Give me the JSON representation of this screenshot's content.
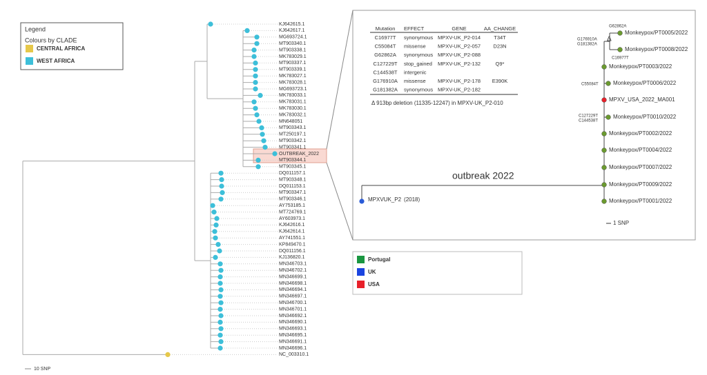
{
  "legend": {
    "title": "Legend",
    "subtitle": "Colours by CLADE",
    "items": [
      {
        "label": "CENTRAL AFRICA",
        "color": "#e6c84a"
      },
      {
        "label": "WEST AFRICA",
        "color": "#3dbfd9"
      }
    ]
  },
  "tree": {
    "leaves": [
      "KJ642615.1",
      "KJ642617.1",
      "MG693724.1",
      "MT903340.1",
      "MT903338.1",
      "MK783029.1",
      "MT903337.1",
      "MT903339.1",
      "MK783027.1",
      "MK783028.1",
      "MG693723.1",
      "MK783033.1",
      "MK783031.1",
      "MK783030.1",
      "MK783032.1",
      "MN648051",
      "MT903343.1",
      "MT250197.1",
      "MT903342.1",
      "MT903341.1",
      "OUTBREAK_2022",
      "MT903344.1",
      "MT903345.1",
      "DQ011157.1",
      "MT903348.1",
      "DQ011153.1",
      "MT903347.1",
      "MT903346.1",
      "AY753185.1",
      "MT724769.1",
      "AY603973.1",
      "KJ642616.1",
      "KJ642614.1",
      "AY741551.1",
      "KP849470.1",
      "DQ011156.1",
      "KJ136820.1",
      "MN346703.1",
      "MN346702.1",
      "MN346699.1",
      "MN346698.1",
      "MN346694.1",
      "MN346697.1",
      "MN346700.1",
      "MN346701.1",
      "MN346692.1",
      "MN346690.1",
      "MN346693.1",
      "MN346695.1",
      "MN346691.1",
      "MN346696.1",
      "NC_003310.1"
    ],
    "scale_label": "10 SNP"
  },
  "inset": {
    "table": {
      "header": [
        "Mutation",
        "EFFECT",
        "GENE",
        "AA_CHANGE"
      ],
      "rows": [
        [
          "C16977T",
          "synonymous",
          "MPXV-UK_P2-014",
          "T34T"
        ],
        [
          "C55084T",
          "missense",
          "MPXV-UK_P2-057",
          "D23N"
        ],
        [
          "G62862A",
          "synonymous",
          "MPXV-UK_P2-088"
        ],
        [
          "C127229T",
          "stop_gained",
          "MPXV-UK_P2-132",
          "Q9*"
        ],
        [
          "C144538T",
          "intergenic"
        ],
        [
          "G176910A",
          "missense",
          "MPXV-UK_P2-178",
          "E390K"
        ],
        [
          "G181382A",
          "synonymous",
          "MPXV-UK_P2-182"
        ]
      ]
    },
    "deletion_note": "Δ 913bp deletion (11335-12247) in MPXV-UK_P2-010",
    "title": "outbreak 2022",
    "root": {
      "label": "MPXVUK_P2",
      "year": "(2018)"
    },
    "leaves": [
      "Monkeypox/PT0005/2022",
      "Monkeypox/PT0008/2022",
      "Monkeypox/PT0003/2022",
      "Monkeypox/PT0006/2022",
      "MPXV_USA_2022_MA001",
      "Monkeypox/PT0010/2022",
      "Monkeypox/PT0002/2022",
      "Monkeypox/PT0004/2022",
      "Monkeypox/PT0007/2022",
      "Monkeypox/PT0009/2022",
      "Monkeypox/PT0001/2022"
    ],
    "mutation_labels": [
      "G62862A",
      "Δ",
      "G176910A",
      "G181382A",
      "C16977T",
      "C55084T",
      "C127229T",
      "C144538T"
    ],
    "scale_label": "1 SNP"
  },
  "countries": [
    {
      "label": "Portugal",
      "color": "#1a9641"
    },
    {
      "label": "UK",
      "color": "#1a44e0"
    },
    {
      "label": "USA",
      "color": "#e8202a"
    }
  ]
}
